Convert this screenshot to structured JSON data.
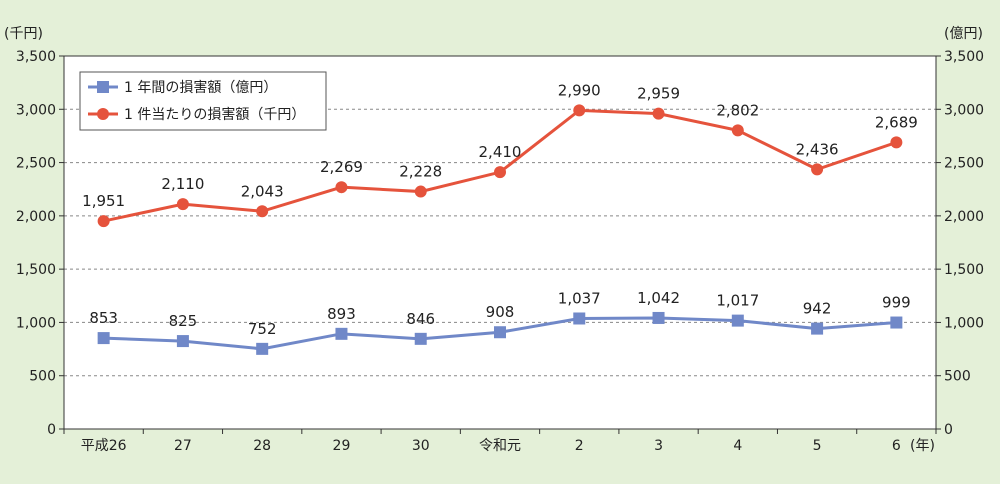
{
  "chart_data": {
    "type": "line",
    "left_unit": "(千円)",
    "right_unit": "(億円)",
    "year_suffix": "(年)",
    "categories": [
      "平成26",
      "27",
      "28",
      "29",
      "30",
      "令和元",
      "2",
      "3",
      "4",
      "5",
      "6"
    ],
    "ylim": [
      0,
      3500
    ],
    "yticks": [
      0,
      500,
      1000,
      1500,
      2000,
      2500,
      3000,
      3500
    ],
    "ytick_labels": [
      "0",
      "500",
      "1,000",
      "1,500",
      "2,000",
      "2,500",
      "3,000",
      "3,500"
    ],
    "grid": true,
    "legend_position": "top-left",
    "series": [
      {
        "name": "1 年間の損害額（億円）",
        "axis": "right",
        "color": "#7088c8",
        "marker": "square",
        "values": [
          853,
          825,
          752,
          893,
          846,
          908,
          1037,
          1042,
          1017,
          942,
          999
        ],
        "labels": [
          "853",
          "825",
          "752",
          "893",
          "846",
          "908",
          "1,037",
          "1,042",
          "1,017",
          "942",
          "999"
        ]
      },
      {
        "name": "1 件当たりの損害額（千円）",
        "axis": "left",
        "color": "#e5533c",
        "marker": "circle",
        "values": [
          1951,
          2110,
          2043,
          2269,
          2228,
          2410,
          2990,
          2959,
          2802,
          2436,
          2689
        ],
        "labels": [
          "1,951",
          "2,110",
          "2,043",
          "2,269",
          "2,228",
          "2,410",
          "2,990",
          "2,959",
          "2,802",
          "2,436",
          "2,689"
        ]
      }
    ]
  }
}
